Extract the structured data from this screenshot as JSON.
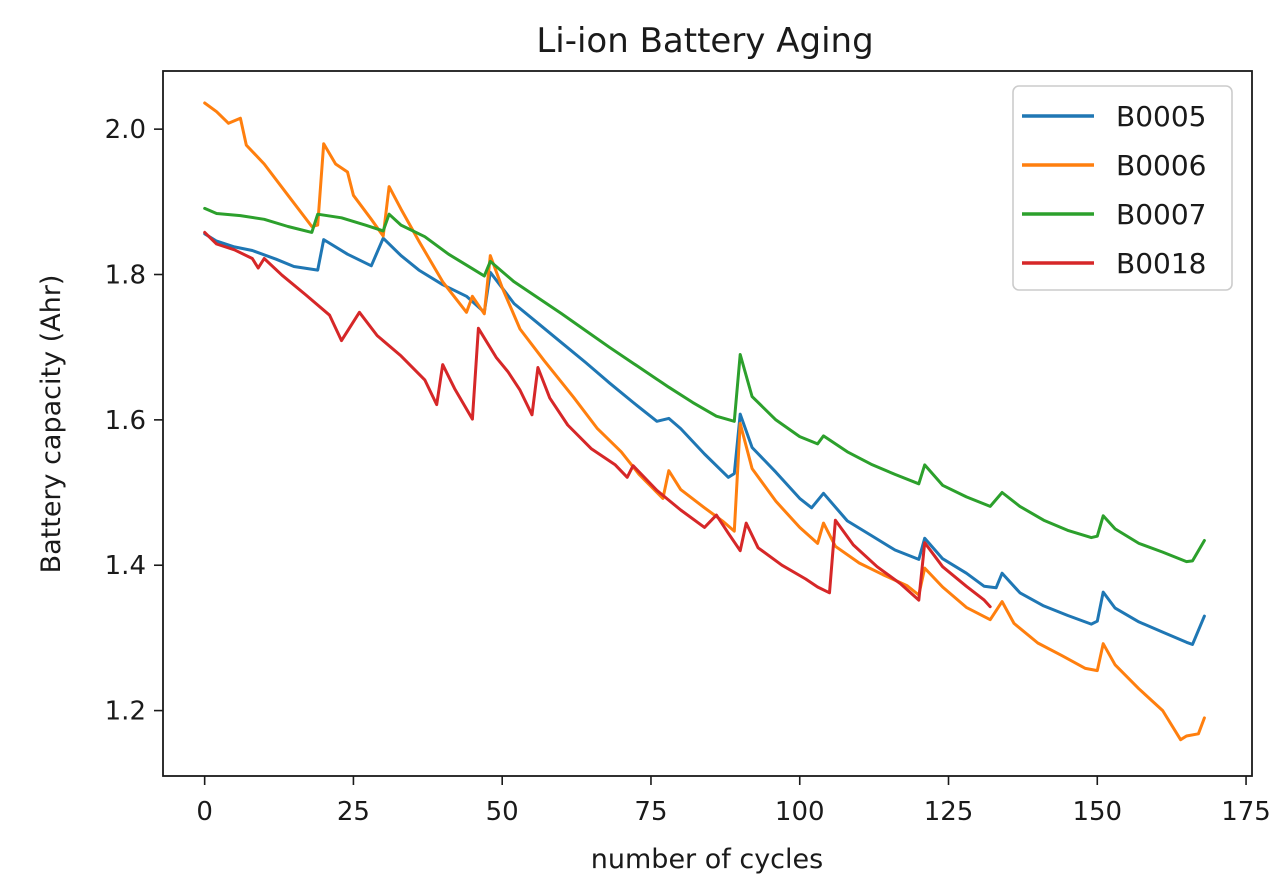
{
  "chart_data": {
    "type": "line",
    "title": "Li-ion Battery Aging",
    "xlabel": "number of cycles",
    "ylabel": "Battery capacity (Ahr)",
    "xlim": [
      -7,
      176
    ],
    "ylim": [
      1.11,
      2.08
    ],
    "xticks": [
      0,
      25,
      50,
      75,
      100,
      125,
      150,
      175
    ],
    "yticks": [
      1.2,
      1.4,
      1.6,
      1.8,
      2.0
    ],
    "xtick_labels": [
      "0",
      "25",
      "50",
      "75",
      "100",
      "125",
      "150",
      "175"
    ],
    "ytick_labels": [
      "1.2",
      "1.4",
      "1.6",
      "1.8",
      "2.0"
    ],
    "grid": false,
    "legend_position": "top-right",
    "series": [
      {
        "name": "B0005",
        "color": "#1f77b4",
        "points": [
          [
            0,
            1.856
          ],
          [
            2,
            1.846
          ],
          [
            5,
            1.838
          ],
          [
            8,
            1.833
          ],
          [
            12,
            1.821
          ],
          [
            15,
            1.811
          ],
          [
            19,
            1.806
          ],
          [
            20,
            1.848
          ],
          [
            24,
            1.828
          ],
          [
            28,
            1.812
          ],
          [
            30,
            1.85
          ],
          [
            33,
            1.826
          ],
          [
            36,
            1.806
          ],
          [
            40,
            1.786
          ],
          [
            44,
            1.77
          ],
          [
            47,
            1.748
          ],
          [
            48,
            1.803
          ],
          [
            52,
            1.76
          ],
          [
            56,
            1.733
          ],
          [
            60,
            1.706
          ],
          [
            64,
            1.679
          ],
          [
            68,
            1.651
          ],
          [
            72,
            1.624
          ],
          [
            76,
            1.598
          ],
          [
            78,
            1.602
          ],
          [
            80,
            1.588
          ],
          [
            84,
            1.553
          ],
          [
            88,
            1.521
          ],
          [
            89,
            1.526
          ],
          [
            90,
            1.608
          ],
          [
            92,
            1.562
          ],
          [
            96,
            1.528
          ],
          [
            100,
            1.492
          ],
          [
            102,
            1.479
          ],
          [
            104,
            1.499
          ],
          [
            108,
            1.461
          ],
          [
            112,
            1.441
          ],
          [
            116,
            1.421
          ],
          [
            120,
            1.408
          ],
          [
            121,
            1.437
          ],
          [
            124,
            1.409
          ],
          [
            128,
            1.389
          ],
          [
            131,
            1.371
          ],
          [
            133,
            1.369
          ],
          [
            134,
            1.389
          ],
          [
            137,
            1.362
          ],
          [
            141,
            1.344
          ],
          [
            145,
            1.331
          ],
          [
            149,
            1.319
          ],
          [
            150,
            1.323
          ],
          [
            151,
            1.363
          ],
          [
            153,
            1.341
          ],
          [
            157,
            1.322
          ],
          [
            161,
            1.308
          ],
          [
            165,
            1.294
          ],
          [
            166,
            1.291
          ],
          [
            168,
            1.33
          ]
        ]
      },
      {
        "name": "B0006",
        "color": "#ff7f0e",
        "points": [
          [
            0,
            2.036
          ],
          [
            2,
            2.024
          ],
          [
            4,
            2.008
          ],
          [
            6,
            2.015
          ],
          [
            7,
            1.978
          ],
          [
            10,
            1.952
          ],
          [
            14,
            1.909
          ],
          [
            18,
            1.866
          ],
          [
            19,
            1.868
          ],
          [
            20,
            1.98
          ],
          [
            22,
            1.952
          ],
          [
            24,
            1.941
          ],
          [
            25,
            1.909
          ],
          [
            28,
            1.876
          ],
          [
            30,
            1.853
          ],
          [
            31,
            1.921
          ],
          [
            33,
            1.89
          ],
          [
            36,
            1.846
          ],
          [
            40,
            1.79
          ],
          [
            44,
            1.748
          ],
          [
            45,
            1.77
          ],
          [
            47,
            1.746
          ],
          [
            48,
            1.826
          ],
          [
            50,
            1.782
          ],
          [
            53,
            1.725
          ],
          [
            57,
            1.682
          ],
          [
            62,
            1.631
          ],
          [
            66,
            1.588
          ],
          [
            70,
            1.556
          ],
          [
            73,
            1.525
          ],
          [
            77,
            1.492
          ],
          [
            78,
            1.53
          ],
          [
            80,
            1.504
          ],
          [
            84,
            1.479
          ],
          [
            87,
            1.461
          ],
          [
            89,
            1.447
          ],
          [
            90,
            1.595
          ],
          [
            92,
            1.533
          ],
          [
            96,
            1.488
          ],
          [
            100,
            1.452
          ],
          [
            103,
            1.43
          ],
          [
            104,
            1.458
          ],
          [
            106,
            1.426
          ],
          [
            110,
            1.403
          ],
          [
            114,
            1.387
          ],
          [
            118,
            1.372
          ],
          [
            120,
            1.359
          ],
          [
            121,
            1.396
          ],
          [
            124,
            1.37
          ],
          [
            128,
            1.342
          ],
          [
            132,
            1.325
          ],
          [
            134,
            1.35
          ],
          [
            136,
            1.32
          ],
          [
            140,
            1.293
          ],
          [
            144,
            1.276
          ],
          [
            148,
            1.258
          ],
          [
            150,
            1.255
          ],
          [
            151,
            1.292
          ],
          [
            153,
            1.263
          ],
          [
            157,
            1.23
          ],
          [
            161,
            1.2
          ],
          [
            164,
            1.16
          ],
          [
            165,
            1.165
          ],
          [
            167,
            1.168
          ],
          [
            168,
            1.19
          ]
        ]
      },
      {
        "name": "B0007",
        "color": "#2ca02c",
        "points": [
          [
            0,
            1.891
          ],
          [
            2,
            1.884
          ],
          [
            6,
            1.881
          ],
          [
            10,
            1.876
          ],
          [
            14,
            1.866
          ],
          [
            18,
            1.858
          ],
          [
            19,
            1.883
          ],
          [
            23,
            1.878
          ],
          [
            27,
            1.868
          ],
          [
            30,
            1.86
          ],
          [
            31,
            1.883
          ],
          [
            33,
            1.868
          ],
          [
            37,
            1.852
          ],
          [
            41,
            1.828
          ],
          [
            45,
            1.808
          ],
          [
            47,
            1.798
          ],
          [
            48,
            1.818
          ],
          [
            52,
            1.79
          ],
          [
            56,
            1.768
          ],
          [
            60,
            1.746
          ],
          [
            64,
            1.723
          ],
          [
            68,
            1.7
          ],
          [
            72,
            1.678
          ],
          [
            76,
            1.656
          ],
          [
            78,
            1.645
          ],
          [
            82,
            1.624
          ],
          [
            86,
            1.605
          ],
          [
            89,
            1.598
          ],
          [
            90,
            1.69
          ],
          [
            92,
            1.632
          ],
          [
            96,
            1.6
          ],
          [
            100,
            1.577
          ],
          [
            103,
            1.567
          ],
          [
            104,
            1.578
          ],
          [
            108,
            1.556
          ],
          [
            112,
            1.539
          ],
          [
            116,
            1.525
          ],
          [
            120,
            1.512
          ],
          [
            121,
            1.538
          ],
          [
            124,
            1.51
          ],
          [
            128,
            1.494
          ],
          [
            132,
            1.481
          ],
          [
            134,
            1.5
          ],
          [
            137,
            1.481
          ],
          [
            141,
            1.462
          ],
          [
            145,
            1.448
          ],
          [
            149,
            1.438
          ],
          [
            150,
            1.44
          ],
          [
            151,
            1.468
          ],
          [
            153,
            1.45
          ],
          [
            157,
            1.43
          ],
          [
            161,
            1.418
          ],
          [
            165,
            1.405
          ],
          [
            166,
            1.406
          ],
          [
            168,
            1.434
          ]
        ]
      },
      {
        "name": "B0018",
        "color": "#d62728",
        "points": [
          [
            0,
            1.858
          ],
          [
            2,
            1.842
          ],
          [
            5,
            1.834
          ],
          [
            8,
            1.822
          ],
          [
            9,
            1.809
          ],
          [
            10,
            1.822
          ],
          [
            13,
            1.799
          ],
          [
            17,
            1.772
          ],
          [
            21,
            1.744
          ],
          [
            23,
            1.709
          ],
          [
            26,
            1.748
          ],
          [
            29,
            1.716
          ],
          [
            33,
            1.688
          ],
          [
            37,
            1.655
          ],
          [
            39,
            1.621
          ],
          [
            40,
            1.676
          ],
          [
            42,
            1.643
          ],
          [
            45,
            1.601
          ],
          [
            46,
            1.726
          ],
          [
            49,
            1.686
          ],
          [
            51,
            1.666
          ],
          [
            53,
            1.641
          ],
          [
            55,
            1.607
          ],
          [
            56,
            1.672
          ],
          [
            58,
            1.63
          ],
          [
            61,
            1.593
          ],
          [
            65,
            1.56
          ],
          [
            69,
            1.538
          ],
          [
            71,
            1.521
          ],
          [
            72,
            1.537
          ],
          [
            76,
            1.503
          ],
          [
            80,
            1.476
          ],
          [
            84,
            1.452
          ],
          [
            86,
            1.469
          ],
          [
            88,
            1.444
          ],
          [
            90,
            1.42
          ],
          [
            91,
            1.458
          ],
          [
            93,
            1.424
          ],
          [
            97,
            1.4
          ],
          [
            101,
            1.381
          ],
          [
            103,
            1.37
          ],
          [
            105,
            1.362
          ],
          [
            106,
            1.462
          ],
          [
            109,
            1.428
          ],
          [
            113,
            1.398
          ],
          [
            117,
            1.374
          ],
          [
            120,
            1.352
          ],
          [
            121,
            1.431
          ],
          [
            124,
            1.398
          ],
          [
            128,
            1.371
          ],
          [
            131,
            1.352
          ],
          [
            132,
            1.343
          ]
        ]
      }
    ]
  }
}
